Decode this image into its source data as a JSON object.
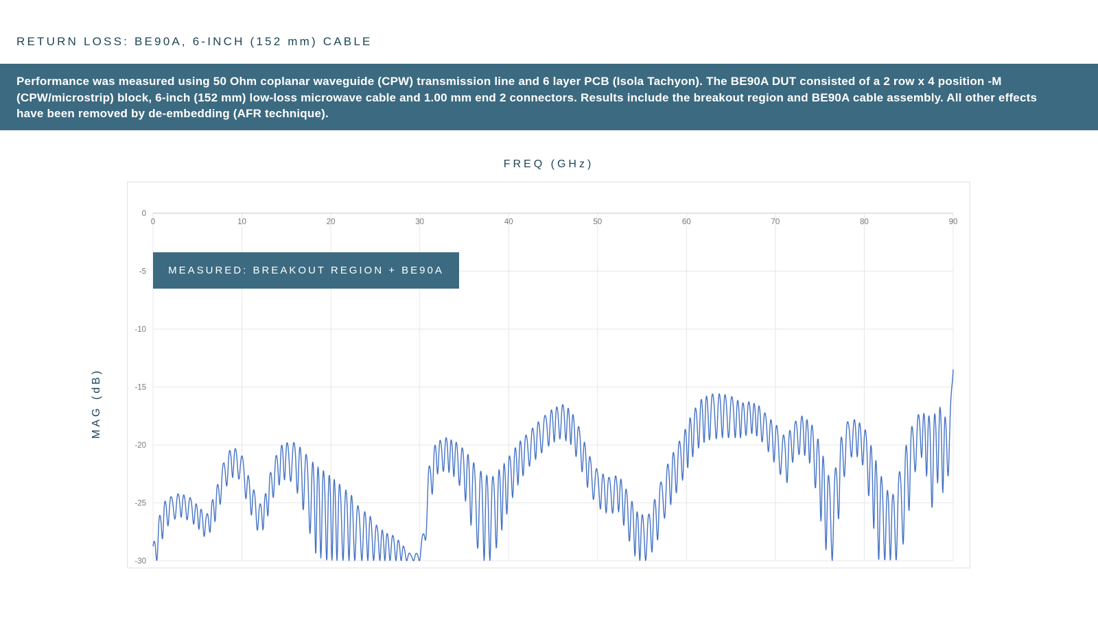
{
  "page": {
    "title": "RETURN LOSS: BE90A, 6-INCH (152 mm) CABLE"
  },
  "banner": {
    "text": "Performance was measured using 50 Ohm coplanar waveguide (CPW) transmission line and 6 layer PCB (Isola Tachyon). The BE90A DUT consisted of a 2 row x 4 position -M (CPW/microstrip) block, 6-inch (152 mm) low-loss microwave cable and 1.00 mm end 2 connectors. Results include the breakout region and BE90A cable assembly. All other effects have been removed by de-embedding (AFR technique).",
    "bg_color": "#3c6a80",
    "text_color": "#ffffff"
  },
  "colors": {
    "accent_teal": "#3c6a80",
    "heading_navy": "#1e4457",
    "trace_blue": "#4472c4",
    "grid_gray": "#e7e7e7",
    "axis_gray": "#c4c4c4",
    "tick_text_gray": "#75787c",
    "card_border": "#e0e0e0"
  },
  "chart_data": {
    "type": "line",
    "title": "FREQ (GHz)",
    "xlabel": "FREQ (GHz)",
    "ylabel": "MAG (dB)",
    "xlim": [
      0,
      90
    ],
    "ylim": [
      -30,
      0
    ],
    "x_ticks": [
      0,
      10,
      20,
      30,
      40,
      50,
      60,
      70,
      80,
      90
    ],
    "y_ticks": [
      0,
      -5,
      -10,
      -15,
      -20,
      -25,
      -30
    ],
    "grid": true,
    "x_axis_position": "top",
    "legend": {
      "label": "MEASURED: BREAKOUT REGION + BE90A",
      "position": "top-left",
      "bg_color": "#3c6a80",
      "text_color": "#ffffff"
    },
    "series": [
      {
        "name": "MEASURED: BREAKOUT REGION + BE90A",
        "color": "#4472c4",
        "line_width": 1.4,
        "ripple_period_ghz": 0.655,
        "clip_floor_db": -30,
        "end_value_db": -13.5,
        "envelope_points": [
          [
            0.0,
            -28.5,
            -30.0
          ],
          [
            0.6,
            -26.0,
            -30.0
          ],
          [
            1.2,
            -24.6,
            -27.6
          ],
          [
            2.0,
            -24.2,
            -26.6
          ],
          [
            3.0,
            -23.9,
            -26.2
          ],
          [
            4.2,
            -24.3,
            -26.6
          ],
          [
            5.3,
            -25.2,
            -27.4
          ],
          [
            6.0,
            -25.8,
            -28.2
          ],
          [
            7.0,
            -23.8,
            -26.6
          ],
          [
            8.0,
            -21.0,
            -24.0
          ],
          [
            8.8,
            -19.9,
            -22.8
          ],
          [
            9.8,
            -20.1,
            -23.0
          ],
          [
            10.8,
            -22.5,
            -25.6
          ],
          [
            12.0,
            -24.8,
            -27.9
          ],
          [
            12.6,
            -24.0,
            -27.0
          ],
          [
            13.5,
            -21.0,
            -24.6
          ],
          [
            14.5,
            -19.6,
            -23.0
          ],
          [
            15.6,
            -19.2,
            -23.2
          ],
          [
            16.5,
            -19.6,
            -24.6
          ],
          [
            17.4,
            -20.2,
            -27.0
          ],
          [
            18.3,
            -20.8,
            -29.5
          ],
          [
            19.3,
            -21.3,
            -30.0
          ],
          [
            20.3,
            -22.0,
            -30.0
          ],
          [
            21.3,
            -22.8,
            -30.0
          ],
          [
            22.3,
            -23.6,
            -30.0
          ],
          [
            23.3,
            -25.0,
            -30.0
          ],
          [
            24.2,
            -25.4,
            -30.0
          ],
          [
            25.2,
            -26.6,
            -30.0
          ],
          [
            26.2,
            -27.3,
            -30.0
          ],
          [
            27.2,
            -27.6,
            -30.0
          ],
          [
            28.2,
            -28.6,
            -30.0
          ],
          [
            29.0,
            -29.4,
            -30.0
          ],
          [
            30.0,
            -29.2,
            -30.0
          ],
          [
            30.4,
            -27.0,
            -30.0
          ],
          [
            31.0,
            -21.5,
            -26.0
          ],
          [
            31.8,
            -19.4,
            -22.6
          ],
          [
            33.0,
            -19.0,
            -22.2
          ],
          [
            34.2,
            -19.4,
            -23.0
          ],
          [
            35.2,
            -20.0,
            -25.0
          ],
          [
            36.2,
            -20.8,
            -28.5
          ],
          [
            37.2,
            -21.6,
            -30.0
          ],
          [
            38.2,
            -21.8,
            -30.0
          ],
          [
            39.2,
            -21.2,
            -27.5
          ],
          [
            40.2,
            -20.3,
            -25.0
          ],
          [
            41.2,
            -19.3,
            -23.2
          ],
          [
            42.4,
            -18.4,
            -21.8
          ],
          [
            43.6,
            -17.4,
            -20.8
          ],
          [
            44.8,
            -16.6,
            -19.9
          ],
          [
            46.0,
            -16.1,
            -19.4
          ],
          [
            47.0,
            -16.6,
            -20.0
          ],
          [
            48.0,
            -18.2,
            -21.8
          ],
          [
            49.0,
            -20.4,
            -24.0
          ],
          [
            50.0,
            -21.8,
            -25.4
          ],
          [
            51.2,
            -22.4,
            -26.0
          ],
          [
            52.4,
            -22.2,
            -25.8
          ],
          [
            53.4,
            -23.6,
            -28.0
          ],
          [
            54.4,
            -25.2,
            -30.0
          ],
          [
            55.6,
            -25.8,
            -30.0
          ],
          [
            56.6,
            -23.8,
            -28.6
          ],
          [
            57.6,
            -21.6,
            -26.2
          ],
          [
            58.6,
            -20.0,
            -24.6
          ],
          [
            59.6,
            -18.6,
            -23.0
          ],
          [
            60.6,
            -16.8,
            -21.2
          ],
          [
            61.6,
            -15.6,
            -20.0
          ],
          [
            62.6,
            -15.1,
            -19.6
          ],
          [
            64.0,
            -15.1,
            -19.4
          ],
          [
            65.2,
            -15.4,
            -19.4
          ],
          [
            66.2,
            -16.0,
            -19.4
          ],
          [
            67.2,
            -15.9,
            -19.0
          ],
          [
            68.2,
            -16.3,
            -19.4
          ],
          [
            69.2,
            -17.2,
            -20.6
          ],
          [
            70.2,
            -17.9,
            -22.0
          ],
          [
            71.2,
            -18.9,
            -23.6
          ],
          [
            72.0,
            -17.7,
            -21.4
          ],
          [
            73.0,
            -17.1,
            -20.6
          ],
          [
            74.0,
            -17.6,
            -21.8
          ],
          [
            74.8,
            -18.8,
            -25.0
          ],
          [
            75.6,
            -20.6,
            -29.0
          ],
          [
            76.4,
            -23.0,
            -30.0
          ],
          [
            77.2,
            -19.0,
            -26.0
          ],
          [
            78.0,
            -17.6,
            -21.4
          ],
          [
            79.0,
            -17.4,
            -20.8
          ],
          [
            80.0,
            -18.0,
            -22.0
          ],
          [
            80.8,
            -19.4,
            -26.0
          ],
          [
            81.6,
            -21.0,
            -30.0
          ],
          [
            82.4,
            -23.0,
            -30.0
          ],
          [
            83.2,
            -23.6,
            -30.0
          ],
          [
            84.0,
            -21.2,
            -30.0
          ],
          [
            84.8,
            -18.8,
            -27.0
          ],
          [
            85.6,
            -17.2,
            -22.6
          ],
          [
            86.4,
            -16.6,
            -21.0
          ],
          [
            87.1,
            -16.8,
            -23.0
          ],
          [
            87.8,
            -16.3,
            -26.4
          ],
          [
            88.5,
            -16.1,
            -21.6
          ],
          [
            89.1,
            -16.5,
            -26.3
          ],
          [
            89.6,
            -16.4,
            -21.0
          ],
          [
            90.0,
            -13.5,
            -18.0
          ]
        ]
      }
    ]
  }
}
